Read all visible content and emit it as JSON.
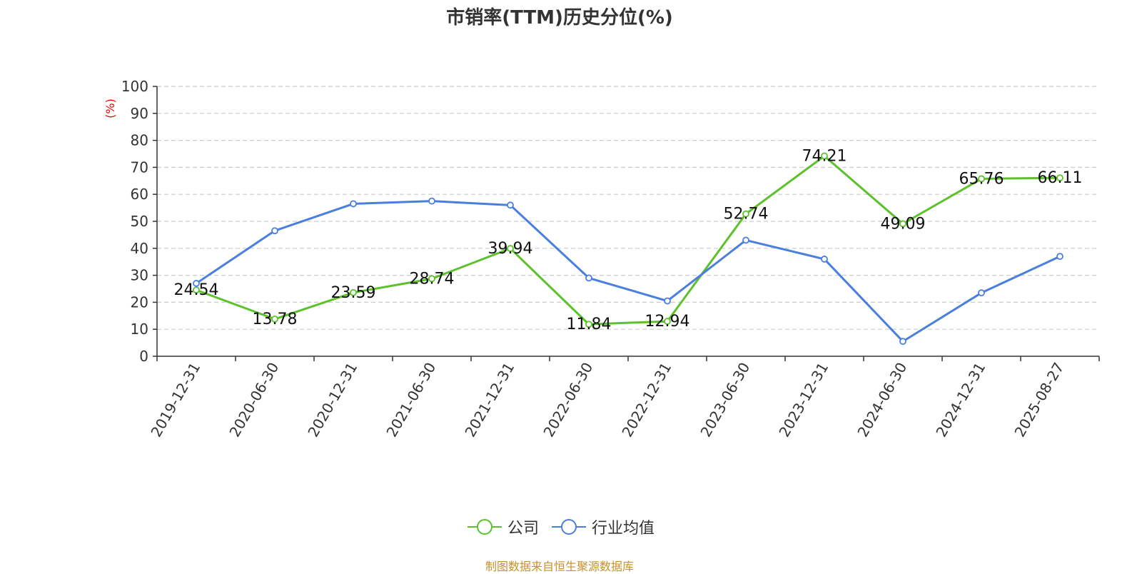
{
  "colors": {
    "company": "#5cc12a",
    "industry": "#4a7fdd",
    "grid": "#cccccc",
    "axis": "#333333",
    "ylabel": "#ff0000",
    "footer": "#c8902a"
  },
  "footer": "制图数据来自恒生聚源数据库",
  "chart_data": {
    "type": "line",
    "title": "市销率(TTM)历史分位(%)",
    "ylabel": "(%)",
    "xlabel": "",
    "ylim": [
      0,
      100
    ],
    "yticks": [
      0,
      10,
      20,
      30,
      40,
      50,
      60,
      70,
      80,
      90,
      100
    ],
    "grid": "horizontal dashed",
    "legend_position": "bottom-center",
    "categories": [
      "2019-12-31",
      "2020-06-30",
      "2020-12-31",
      "2021-06-30",
      "2021-12-31",
      "2022-06-30",
      "2022-12-31",
      "2023-06-30",
      "2023-12-31",
      "2024-06-30",
      "2024-12-31",
      "2025-08-27"
    ],
    "series": [
      {
        "name": "公司",
        "color": "#5cc12a",
        "values": [
          24.54,
          13.78,
          23.59,
          28.74,
          39.94,
          11.84,
          12.94,
          52.74,
          74.21,
          49.09,
          65.76,
          66.11
        ],
        "labels": [
          "24.54",
          "13.78",
          "23.59",
          "28.74",
          "39.94",
          "11.84",
          "12.94",
          "52.74",
          "74.21",
          "49.09",
          "65.76",
          "66.11"
        ]
      },
      {
        "name": "行业均值",
        "color": "#4a7fdd",
        "values": [
          27.0,
          46.5,
          56.5,
          57.5,
          56.0,
          29.0,
          20.5,
          43.0,
          36.0,
          5.5,
          23.5,
          37.0
        ]
      }
    ]
  }
}
